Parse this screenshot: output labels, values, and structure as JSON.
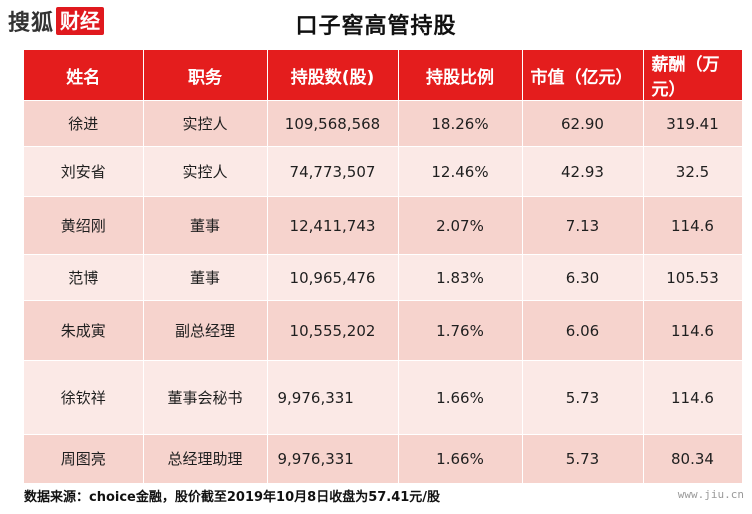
{
  "header": {
    "logo_sohu": "搜狐",
    "logo_caijing": "财经",
    "title": "口子窖高管持股"
  },
  "table": {
    "columns": [
      "姓名",
      "职务",
      "持股数(股)",
      "持股比例",
      "市值（亿元）",
      "薪酬（万元）"
    ],
    "rows": [
      [
        "徐进",
        "实控人",
        "109,568,568",
        "18.26%",
        "62.90",
        "319.41"
      ],
      [
        "刘安省",
        "实控人",
        "74,773,507",
        "12.46%",
        "42.93",
        "32.5"
      ],
      [
        "黄绍刚",
        "董事",
        "12,411,743",
        "2.07%",
        "7.13",
        "114.6"
      ],
      [
        "范博",
        "董事",
        "10,965,476",
        "1.83%",
        "6.30",
        "105.53"
      ],
      [
        "朱成寅",
        "副总经理",
        "10,555,202",
        "1.76%",
        "6.06",
        "114.6"
      ],
      [
        "徐钦祥",
        "董事会秘书",
        "9,976,331",
        "1.66%",
        "5.73",
        "114.6"
      ],
      [
        "周图亮",
        "总经理助理",
        "9,976,331",
        "1.66%",
        "5.73",
        "80.34"
      ]
    ]
  },
  "footer": {
    "source": "数据来源：choice金融，股价截至2019年10月8日收盘为57.41元/股",
    "watermark": "www.jiu.cn"
  },
  "colors": {
    "header_red": "#e41d1d",
    "row_dark": "#f6d3cd",
    "row_light": "#fbe9e6"
  }
}
